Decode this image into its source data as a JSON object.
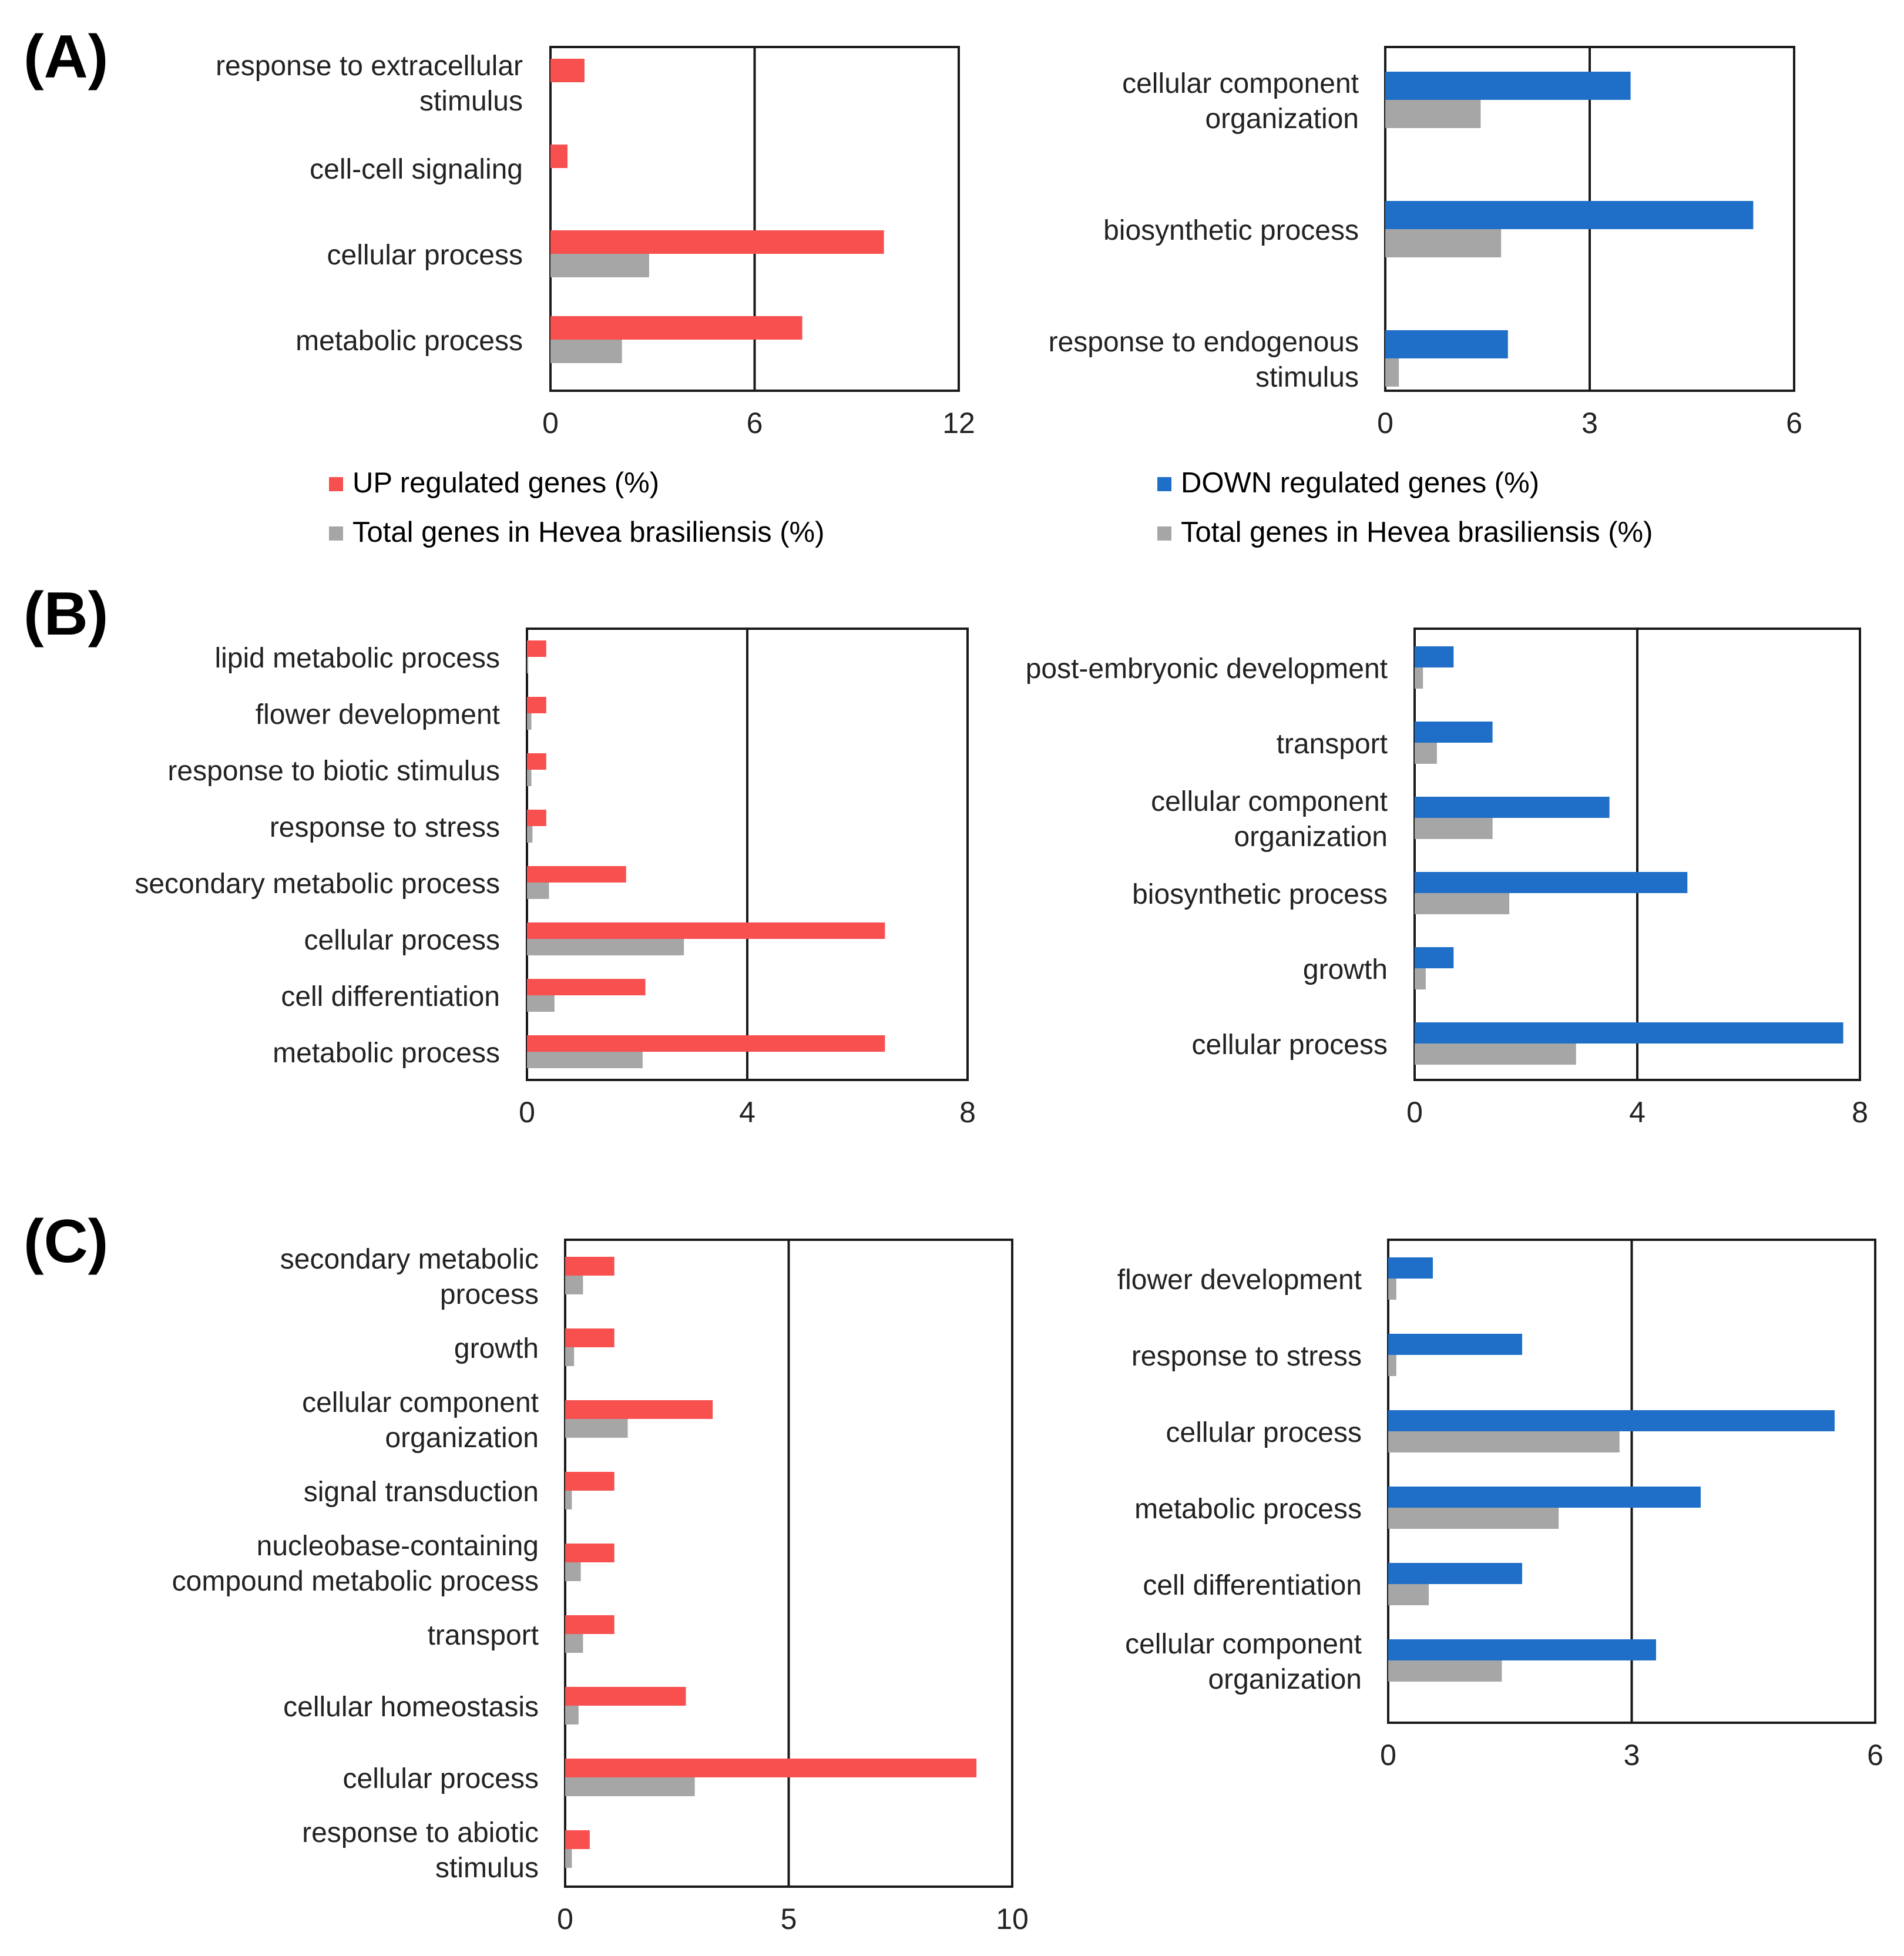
{
  "figure": {
    "panels": [
      "(A)",
      "(B)",
      "(C)"
    ]
  },
  "colors": {
    "up": "#F84F4F",
    "down": "#1F6FC8",
    "total": "#A6A6A6",
    "axis": "#1a1a1a"
  },
  "legends": {
    "up": "UP regulated genes (%)",
    "down": "DOWN regulated genes (%)",
    "total": "Total genes in Hevea brasiliensis (%)"
  },
  "chart_data": [
    {
      "id": "A-up",
      "panel": "(A)",
      "type": "bar",
      "orientation": "horizontal",
      "categories": [
        "response to extracellular stimulus",
        "cell-cell signaling",
        "cellular process",
        "metabolic process"
      ],
      "series": [
        {
          "name": "UP regulated genes (%)",
          "values": [
            1.0,
            0.5,
            9.8,
            7.4
          ]
        },
        {
          "name": "Total genes in Hevea brasiliensis (%)",
          "values": [
            0,
            0,
            2.9,
            2.1
          ]
        }
      ],
      "xlim": [
        0,
        12
      ],
      "xticks": [
        "0",
        "6",
        "12"
      ],
      "refline": 6
    },
    {
      "id": "A-down",
      "panel": "(A)",
      "type": "bar",
      "orientation": "horizontal",
      "categories": [
        "cellular component organization",
        "biosynthetic process",
        "response to endogenous stimulus"
      ],
      "series": [
        {
          "name": "DOWN regulated genes (%)",
          "values": [
            3.6,
            5.4,
            1.8
          ]
        },
        {
          "name": "Total genes in Hevea brasiliensis (%)",
          "values": [
            1.4,
            1.7,
            0.2
          ]
        }
      ],
      "xlim": [
        0,
        6
      ],
      "xticks": [
        "0",
        "3",
        "6"
      ],
      "refline": 3
    },
    {
      "id": "B-up",
      "panel": "(B)",
      "type": "bar",
      "orientation": "horizontal",
      "categories": [
        "lipid metabolic process",
        "flower development",
        "response to biotic stimulus",
        "response to stress",
        "secondary metabolic process",
        "cellular process",
        "cell differentiation",
        "metabolic process"
      ],
      "series": [
        {
          "name": "UP regulated genes (%)",
          "values": [
            0.35,
            0.35,
            0.35,
            0.35,
            1.8,
            6.5,
            2.15,
            6.5
          ]
        },
        {
          "name": "Total genes in Hevea brasiliensis (%)",
          "values": [
            0.02,
            0.08,
            0.08,
            0.1,
            0.4,
            2.85,
            0.5,
            2.1
          ]
        }
      ],
      "xlim": [
        0,
        8
      ],
      "xticks": [
        "0",
        "4",
        "8"
      ],
      "refline": 4
    },
    {
      "id": "B-down",
      "panel": "(B)",
      "type": "bar",
      "orientation": "horizontal",
      "categories": [
        "post-embryonic development",
        "transport",
        "cellular component organization",
        "biosynthetic process",
        "growth",
        "cellular process"
      ],
      "series": [
        {
          "name": "DOWN regulated genes (%)",
          "values": [
            0.7,
            1.4,
            3.5,
            4.9,
            0.7,
            7.7
          ]
        },
        {
          "name": "Total genes in Hevea brasiliensis (%)",
          "values": [
            0.15,
            0.4,
            1.4,
            1.7,
            0.2,
            2.9
          ]
        }
      ],
      "xlim": [
        0,
        8
      ],
      "xticks": [
        "0",
        "4",
        "8"
      ],
      "refline": 4
    },
    {
      "id": "C-up",
      "panel": "(C)",
      "type": "bar",
      "orientation": "horizontal",
      "categories": [
        "secondary metabolic process",
        "growth",
        "cellular component organization",
        "signal transduction",
        "nucleobase-containing compound metabolic process",
        "transport",
        "cellular homeostasis",
        "cellular process",
        "response to abiotic stimulus"
      ],
      "series": [
        {
          "name": "UP regulated genes (%)",
          "values": [
            1.1,
            1.1,
            3.3,
            1.1,
            1.1,
            1.1,
            2.7,
            9.2,
            0.55
          ]
        },
        {
          "name": "Total genes in Hevea brasiliensis (%)",
          "values": [
            0.4,
            0.2,
            1.4,
            0.15,
            0.35,
            0.4,
            0.3,
            2.9,
            0.15
          ]
        }
      ],
      "xlim": [
        0,
        10
      ],
      "xticks": [
        "0",
        "5",
        "10"
      ],
      "refline": 5
    },
    {
      "id": "C-down",
      "panel": "(C)",
      "type": "bar",
      "orientation": "horizontal",
      "categories": [
        "flower development",
        "response to stress",
        "cellular process",
        "metabolic process",
        "cell differentiation",
        "cellular component organization"
      ],
      "series": [
        {
          "name": "DOWN regulated genes (%)",
          "values": [
            0.55,
            1.65,
            5.5,
            3.85,
            1.65,
            3.3
          ]
        },
        {
          "name": "Total genes in Hevea brasiliensis (%)",
          "values": [
            0.1,
            0.1,
            2.85,
            2.1,
            0.5,
            1.4
          ]
        }
      ],
      "xlim": [
        0,
        6
      ],
      "xticks": [
        "0",
        "3",
        "6"
      ],
      "refline": 3
    }
  ]
}
